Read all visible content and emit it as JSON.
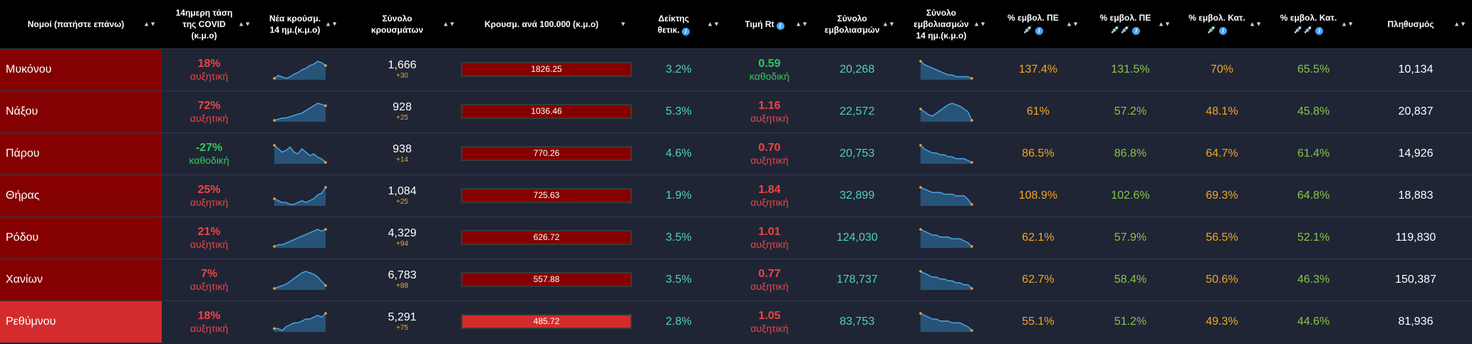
{
  "headers": {
    "name": "Νομοί (πατήστε επάνω)",
    "trend": [
      "14ημερη τάση",
      "της COVID",
      "(κ.μ.ο)"
    ],
    "new_cases": [
      "Νέα κρούσμ.",
      "14 ημ.(κ.μ.ο)"
    ],
    "total_cases": [
      "Σύνολο",
      "κρουσμάτων"
    ],
    "per100k": "Κρουσμ. ανά 100.000 (κ.μ.ο)",
    "positivity": [
      "Δείκτης",
      "θετικ."
    ],
    "rt": "Τιμή Rt",
    "total_vacc": [
      "Σύνολο",
      "εμβολιασμών"
    ],
    "vacc14": [
      "Σύνολο",
      "εμβολιασμών",
      "14 ημ.(κ.μ.ο)"
    ],
    "pe1": "% εμβολ. ΠΕ",
    "pe2": "% εμβολ. ΠΕ",
    "kat1": "% εμβολ. Κατ.",
    "kat2": "% εμβολ. Κατ.",
    "population": "Πληθυσμός",
    "emoji_one": "💉",
    "emoji_two": "💉💉",
    "info_glyph": "i",
    "sort_glyph": "▲▼",
    "sort_active_glyph": "▼"
  },
  "colors": {
    "dark_red": "#850000",
    "light_red": "#d42c2c",
    "trend_red": "#ef4444",
    "trend_green": "#34c759",
    "cyan": "#4fd1c5",
    "orange": "#f5a623",
    "yellow_green": "#8bc34a",
    "spark_fill": "#2b5f8a",
    "spark_line": "#4aa3e0"
  },
  "rows": [
    {
      "name": "Μυκόνου",
      "shade": "dark",
      "trend": "18%",
      "trend_label": "αυξητική",
      "trend_dir": "up",
      "spark_cases": [
        3,
        5,
        4,
        3,
        4,
        6,
        7,
        9,
        10,
        12,
        13,
        15,
        14,
        12
      ],
      "total_cases": "1,666",
      "new_cases": "+30",
      "per100k": "1826.25",
      "positivity": "3.2%",
      "rt": "0.59",
      "rt_label": "καθοδική",
      "rt_dir": "down",
      "total_vacc": "20,268",
      "spark_vacc": [
        14,
        12,
        11,
        10,
        9,
        8,
        7,
        6,
        6,
        5,
        5,
        5,
        5,
        4
      ],
      "pe1": "137.4%",
      "pe2": "131.5%",
      "kat1": "70%",
      "kat2": "65.5%",
      "population": "10,134"
    },
    {
      "name": "Νάξου",
      "shade": "dark",
      "trend": "72%",
      "trend_label": "αυξητική",
      "trend_dir": "up",
      "spark_cases": [
        1,
        2,
        3,
        3,
        4,
        5,
        6,
        7,
        9,
        11,
        13,
        15,
        14,
        13
      ],
      "total_cases": "928",
      "new_cases": "+25",
      "per100k": "1036.46",
      "positivity": "5.3%",
      "rt": "1.16",
      "rt_label": "αυξητική",
      "rt_dir": "up",
      "total_vacc": "22,572",
      "spark_vacc": [
        10,
        8,
        6,
        5,
        7,
        9,
        11,
        13,
        14,
        13,
        12,
        10,
        8,
        2
      ],
      "pe1": "61%",
      "pe2": "57.2%",
      "kat1": "48.1%",
      "kat2": "45.8%",
      "population": "20,837"
    },
    {
      "name": "Πάρου",
      "shade": "dark",
      "trend": "-27%",
      "trend_label": "καθοδική",
      "trend_dir": "down",
      "spark_cases": [
        12,
        10,
        8,
        9,
        11,
        8,
        7,
        10,
        8,
        6,
        7,
        5,
        4,
        2
      ],
      "total_cases": "938",
      "new_cases": "+14",
      "per100k": "770.26",
      "positivity": "4.6%",
      "rt": "0.70",
      "rt_label": "αυξητική",
      "rt_dir": "up",
      "total_vacc": "20,753",
      "spark_vacc": [
        13,
        11,
        10,
        9,
        9,
        8,
        8,
        7,
        7,
        6,
        6,
        6,
        5,
        4
      ],
      "pe1": "86.5%",
      "pe2": "86.8%",
      "kat1": "64.7%",
      "kat2": "61.4%",
      "population": "14,926"
    },
    {
      "name": "Θήρας",
      "shade": "dark",
      "trend": "25%",
      "trend_label": "αυξητική",
      "trend_dir": "up",
      "spark_cases": [
        6,
        5,
        4,
        4,
        3,
        3,
        4,
        5,
        4,
        5,
        6,
        8,
        9,
        12
      ],
      "total_cases": "1,084",
      "new_cases": "+25",
      "per100k": "725.63",
      "positivity": "1.9%",
      "rt": "1.84",
      "rt_label": "αυξητική",
      "rt_dir": "up",
      "total_vacc": "32,899",
      "spark_vacc": [
        13,
        12,
        11,
        10,
        10,
        10,
        9,
        9,
        9,
        8,
        8,
        8,
        6,
        3
      ],
      "pe1": "108.9%",
      "pe2": "102.6%",
      "kat1": "69.3%",
      "kat2": "64.8%",
      "population": "18,883"
    },
    {
      "name": "Ρόδου",
      "shade": "dark",
      "trend": "21%",
      "trend_label": "αυξητική",
      "trend_dir": "up",
      "spark_cases": [
        2,
        3,
        3,
        4,
        5,
        6,
        7,
        8,
        9,
        10,
        11,
        12,
        11,
        12
      ],
      "total_cases": "4,329",
      "new_cases": "+94",
      "per100k": "626.72",
      "positivity": "3.5%",
      "rt": "1.01",
      "rt_label": "αυξητική",
      "rt_dir": "up",
      "total_vacc": "124,030",
      "spark_vacc": [
        13,
        12,
        11,
        10,
        10,
        9,
        9,
        9,
        8,
        8,
        8,
        7,
        6,
        4
      ],
      "pe1": "62.1%",
      "pe2": "57.9%",
      "kat1": "56.5%",
      "kat2": "52.1%",
      "population": "119,830"
    },
    {
      "name": "Χανίων",
      "shade": "dark",
      "trend": "7%",
      "trend_label": "αυξητική",
      "trend_dir": "up",
      "spark_cases": [
        2,
        3,
        4,
        5,
        7,
        9,
        11,
        13,
        14,
        13,
        12,
        10,
        7,
        4
      ],
      "total_cases": "6,783",
      "new_cases": "+88",
      "per100k": "557.88",
      "positivity": "3.5%",
      "rt": "0.77",
      "rt_label": "αυξητική",
      "rt_dir": "up",
      "total_vacc": "178,737",
      "spark_vacc": [
        13,
        12,
        11,
        10,
        10,
        9,
        9,
        8,
        8,
        7,
        7,
        6,
        6,
        4
      ],
      "pe1": "62.7%",
      "pe2": "58.4%",
      "kat1": "50.6%",
      "kat2": "46.3%",
      "population": "150,387"
    },
    {
      "name": "Ρεθύμνου",
      "shade": "light",
      "trend": "18%",
      "trend_label": "αυξητική",
      "trend_dir": "up",
      "spark_cases": [
        4,
        4,
        3,
        5,
        6,
        7,
        7,
        8,
        9,
        9,
        10,
        11,
        10,
        12
      ],
      "total_cases": "5,291",
      "new_cases": "+75",
      "per100k": "485.72",
      "positivity": "2.8%",
      "rt": "1.05",
      "rt_label": "αυξητική",
      "rt_dir": "up",
      "total_vacc": "83,753",
      "spark_vacc": [
        13,
        12,
        11,
        10,
        10,
        9,
        9,
        9,
        8,
        8,
        8,
        7,
        6,
        4
      ],
      "pe1": "55.1%",
      "pe2": "51.2%",
      "kat1": "49.3%",
      "kat2": "44.6%",
      "population": "81,936"
    }
  ]
}
